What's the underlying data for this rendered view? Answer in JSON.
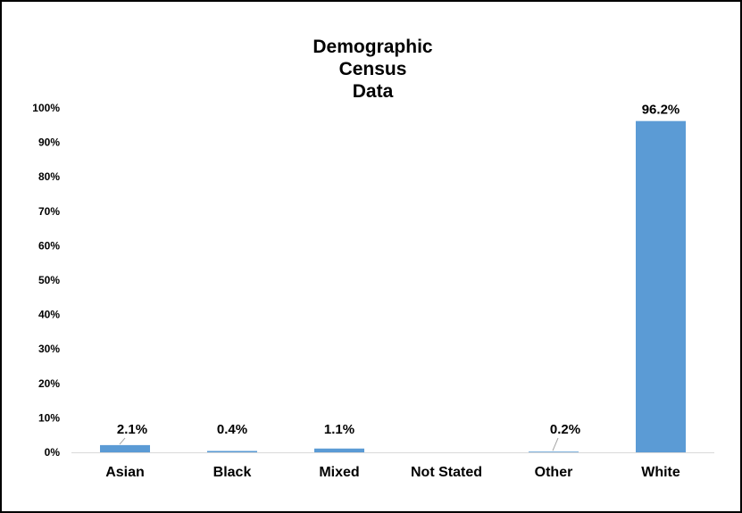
{
  "chart_data": {
    "type": "bar",
    "title_lines": [
      "Demographic",
      "Census",
      "Data"
    ],
    "categories": [
      "Asian",
      "Black",
      "Mixed",
      "Not Stated",
      "Other",
      "White"
    ],
    "values": [
      2.1,
      0.4,
      1.1,
      0,
      0.2,
      96.2
    ],
    "data_labels": [
      "2.1%",
      "0.4%",
      "1.1%",
      "",
      "0.2%",
      "96.2%"
    ],
    "yticks": [
      "0%",
      "10%",
      "20%",
      "30%",
      "40%",
      "50%",
      "60%",
      "70%",
      "80%",
      "90%",
      "100%"
    ],
    "ylim": [
      0,
      100
    ],
    "bar_color": "#5B9BD5",
    "grid": false,
    "legend": "none"
  }
}
